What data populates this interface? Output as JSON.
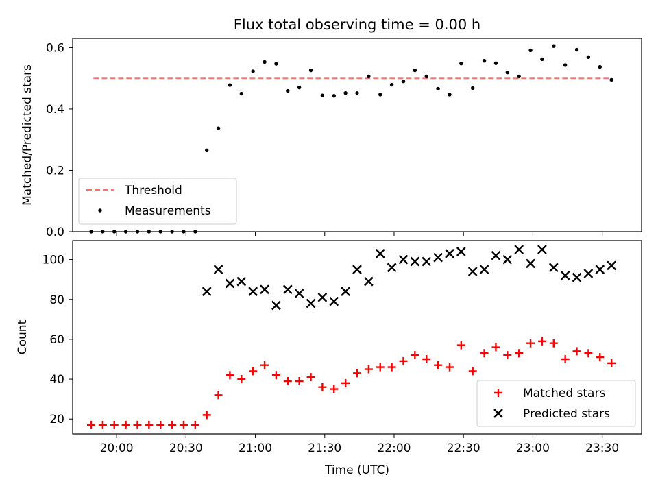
{
  "chart_data": [
    {
      "type": "scatter",
      "title": "Flux total observing time = 0.00 h",
      "xlabel": "",
      "ylabel": "Matched/Predicted stars",
      "ylim": [
        0,
        0.63
      ],
      "yticks": [
        "0.0",
        "0.2",
        "0.4",
        "0.6"
      ],
      "legend_position": "lower-left",
      "threshold": {
        "name": "Threshold",
        "value": 0.5,
        "color": "#ff7070",
        "x_start": "19:50",
        "x_end": "23:33"
      },
      "series": [
        {
          "name": "Measurements",
          "color": "#000000",
          "marker": "dot",
          "points": [
            [
              "19:49",
              0.0
            ],
            [
              "19:54",
              0.0
            ],
            [
              "19:59",
              0.0
            ],
            [
              "20:04",
              0.0
            ],
            [
              "20:09",
              0.0
            ],
            [
              "20:14",
              0.0
            ],
            [
              "20:19",
              0.0
            ],
            [
              "20:24",
              0.0
            ],
            [
              "20:29",
              0.0
            ],
            [
              "20:34",
              0.0
            ],
            [
              "20:39",
              0.265
            ],
            [
              "20:44",
              0.337
            ],
            [
              "20:49",
              0.478
            ],
            [
              "20:54",
              0.45
            ],
            [
              "20:59",
              0.523
            ],
            [
              "21:04",
              0.553
            ],
            [
              "21:09",
              0.547
            ],
            [
              "21:14",
              0.459
            ],
            [
              "21:19",
              0.47
            ],
            [
              "21:24",
              0.526
            ],
            [
              "21:29",
              0.444
            ],
            [
              "21:34",
              0.443
            ],
            [
              "21:39",
              0.452
            ],
            [
              "21:44",
              0.452
            ],
            [
              "21:49",
              0.506
            ],
            [
              "21:54",
              0.447
            ],
            [
              "21:59",
              0.479
            ],
            [
              "22:04",
              0.49
            ],
            [
              "22:09",
              0.526
            ],
            [
              "22:14",
              0.506
            ],
            [
              "22:19",
              0.466
            ],
            [
              "22:24",
              0.447
            ],
            [
              "22:29",
              0.548
            ],
            [
              "22:34",
              0.468
            ],
            [
              "22:39",
              0.557
            ],
            [
              "22:44",
              0.549
            ],
            [
              "22:49",
              0.519
            ],
            [
              "22:54",
              0.506
            ],
            [
              "22:59",
              0.591
            ],
            [
              "23:04",
              0.562
            ],
            [
              "23:09",
              0.605
            ],
            [
              "23:14",
              0.543
            ],
            [
              "23:19",
              0.593
            ],
            [
              "23:24",
              0.569
            ],
            [
              "23:29",
              0.537
            ],
            [
              "23:34",
              0.495
            ]
          ]
        }
      ]
    },
    {
      "type": "scatter",
      "title": "",
      "xlabel": "Time (UTC)",
      "ylabel": "Count",
      "ylim": [
        12.5,
        109.5
      ],
      "yticks": [
        "20",
        "40",
        "60",
        "80",
        "100"
      ],
      "xlim": [
        "19:41",
        "23:47"
      ],
      "xticks": [
        "20:00",
        "20:30",
        "21:00",
        "21:30",
        "22:00",
        "22:30",
        "23:00",
        "23:30"
      ],
      "legend_position": "lower-right",
      "series": [
        {
          "name": "Matched stars",
          "color": "#ff0000",
          "marker": "plus",
          "points": [
            [
              "19:49",
              17
            ],
            [
              "19:54",
              17
            ],
            [
              "19:59",
              17
            ],
            [
              "20:04",
              17
            ],
            [
              "20:09",
              17
            ],
            [
              "20:14",
              17
            ],
            [
              "20:19",
              17
            ],
            [
              "20:24",
              17
            ],
            [
              "20:29",
              17
            ],
            [
              "20:34",
              17
            ],
            [
              "20:39",
              22
            ],
            [
              "20:44",
              32
            ],
            [
              "20:49",
              42
            ],
            [
              "20:54",
              40
            ],
            [
              "20:59",
              44
            ],
            [
              "21:04",
              47
            ],
            [
              "21:09",
              42
            ],
            [
              "21:14",
              39
            ],
            [
              "21:19",
              39
            ],
            [
              "21:24",
              41
            ],
            [
              "21:29",
              36
            ],
            [
              "21:34",
              35
            ],
            [
              "21:39",
              38
            ],
            [
              "21:44",
              43
            ],
            [
              "21:49",
              45
            ],
            [
              "21:54",
              46
            ],
            [
              "21:59",
              46
            ],
            [
              "22:04",
              49
            ],
            [
              "22:09",
              52
            ],
            [
              "22:14",
              50
            ],
            [
              "22:19",
              47
            ],
            [
              "22:24",
              46
            ],
            [
              "22:29",
              57
            ],
            [
              "22:34",
              44
            ],
            [
              "22:39",
              53
            ],
            [
              "22:44",
              56
            ],
            [
              "22:49",
              52
            ],
            [
              "22:54",
              53
            ],
            [
              "22:59",
              58
            ],
            [
              "23:04",
              59
            ],
            [
              "23:09",
              58
            ],
            [
              "23:14",
              50
            ],
            [
              "23:19",
              54
            ],
            [
              "23:24",
              53
            ],
            [
              "23:29",
              51
            ],
            [
              "23:34",
              48
            ]
          ]
        },
        {
          "name": "Predicted stars",
          "color": "#000000",
          "marker": "cross",
          "points": [
            [
              "20:39",
              84
            ],
            [
              "20:44",
              95
            ],
            [
              "20:49",
              88
            ],
            [
              "20:54",
              89
            ],
            [
              "20:59",
              84
            ],
            [
              "21:04",
              85
            ],
            [
              "21:09",
              77
            ],
            [
              "21:14",
              85
            ],
            [
              "21:19",
              83
            ],
            [
              "21:24",
              78
            ],
            [
              "21:29",
              81
            ],
            [
              "21:34",
              79
            ],
            [
              "21:39",
              84
            ],
            [
              "21:44",
              95
            ],
            [
              "21:49",
              89
            ],
            [
              "21:54",
              103
            ],
            [
              "21:59",
              96
            ],
            [
              "22:04",
              100
            ],
            [
              "22:09",
              99
            ],
            [
              "22:14",
              99
            ],
            [
              "22:19",
              101
            ],
            [
              "22:24",
              103
            ],
            [
              "22:29",
              104
            ],
            [
              "22:34",
              94
            ],
            [
              "22:39",
              95
            ],
            [
              "22:44",
              102
            ],
            [
              "22:49",
              100
            ],
            [
              "22:54",
              105
            ],
            [
              "22:59",
              98
            ],
            [
              "23:04",
              105
            ],
            [
              "23:09",
              96
            ],
            [
              "23:14",
              92
            ],
            [
              "23:19",
              91
            ],
            [
              "23:24",
              93
            ],
            [
              "23:29",
              95
            ],
            [
              "23:34",
              97
            ]
          ]
        }
      ]
    }
  ]
}
